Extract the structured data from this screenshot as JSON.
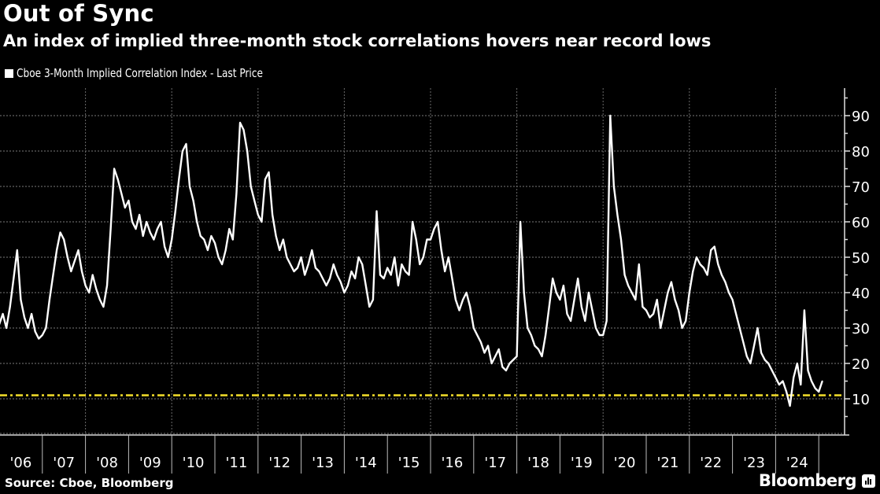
{
  "header": {
    "title": "Out of Sync",
    "subtitle": "An index of implied three-month stock correlations hovers near record lows"
  },
  "footer": {
    "source": "Source: Cboe, Bloomberg",
    "brand": "Bloomberg",
    "brand_icon": "bloomberg-chart-icon"
  },
  "chart_data": {
    "type": "line",
    "title": "Out of Sync",
    "subtitle": "An index of implied three-month stock correlations hovers near record lows",
    "xlabel": "",
    "ylabel": "",
    "legend": {
      "position": "top-left",
      "entries": [
        {
          "name": "Cboe 3-Month Implied Correlation Index - Last Price",
          "color": "#ffffff"
        }
      ]
    },
    "x_tick_labels": [
      "'06",
      "'07",
      "'08",
      "'09",
      "'10",
      "'11",
      "'12",
      "'13",
      "'14",
      "'15",
      "'16",
      "'17",
      "'18",
      "'19",
      "'20",
      "'21",
      "'22",
      "'23",
      "'24"
    ],
    "xlim": [
      2006.0,
      2025.0
    ],
    "ylim": [
      0,
      98
    ],
    "y_ticks": [
      10,
      20,
      30,
      40,
      50,
      60,
      70,
      80,
      90
    ],
    "y_axis_side": "right",
    "grid": true,
    "reference_line": {
      "value": 11,
      "color": "#f5e02a",
      "style": "dash-dot"
    },
    "series": [
      {
        "name": "Cboe 3-Month Implied Correlation Index - Last Price",
        "color": "#ffffff",
        "x_start": 2006.0,
        "x_step": 0.08333,
        "values": [
          31,
          34,
          30,
          36,
          44,
          52,
          38,
          33,
          30,
          34,
          29,
          27,
          28,
          30,
          38,
          45,
          52,
          57,
          55,
          50,
          46,
          49,
          52,
          46,
          42,
          40,
          45,
          41,
          38,
          36,
          42,
          58,
          75,
          72,
          68,
          64,
          66,
          60,
          58,
          62,
          56,
          60,
          57,
          55,
          58,
          60,
          53,
          50,
          55,
          63,
          72,
          80,
          82,
          70,
          66,
          60,
          56,
          55,
          52,
          56,
          54,
          50,
          48,
          52,
          58,
          55,
          68,
          88,
          86,
          80,
          70,
          66,
          62,
          60,
          72,
          74,
          62,
          56,
          52,
          55,
          50,
          48,
          46,
          47,
          50,
          45,
          48,
          52,
          47,
          46,
          44,
          42,
          44,
          48,
          45,
          43,
          40,
          42,
          46,
          44,
          50,
          48,
          42,
          36,
          38,
          63,
          45,
          44,
          47,
          45,
          50,
          42,
          48,
          46,
          45,
          60,
          55,
          48,
          50,
          55,
          55,
          58,
          60,
          52,
          46,
          50,
          44,
          38,
          35,
          38,
          40,
          36,
          30,
          28,
          26,
          23,
          25,
          20,
          22,
          24,
          19,
          18,
          20,
          21,
          22,
          60,
          40,
          30,
          28,
          25,
          24,
          22,
          28,
          36,
          44,
          40,
          38,
          42,
          34,
          32,
          38,
          44,
          36,
          32,
          40,
          35,
          30,
          28,
          28,
          32,
          90,
          70,
          62,
          55,
          45,
          42,
          40,
          38,
          48,
          36,
          35,
          33,
          34,
          38,
          30,
          35,
          40,
          43,
          38,
          35,
          30,
          32,
          40,
          46,
          50,
          48,
          47,
          45,
          52,
          53,
          48,
          45,
          43,
          40,
          38,
          34,
          30,
          26,
          22,
          20,
          25,
          30,
          23,
          21,
          20,
          18,
          16,
          14,
          15,
          12,
          8,
          16,
          20,
          14,
          35,
          18,
          15,
          13,
          12,
          15
        ]
      }
    ]
  }
}
